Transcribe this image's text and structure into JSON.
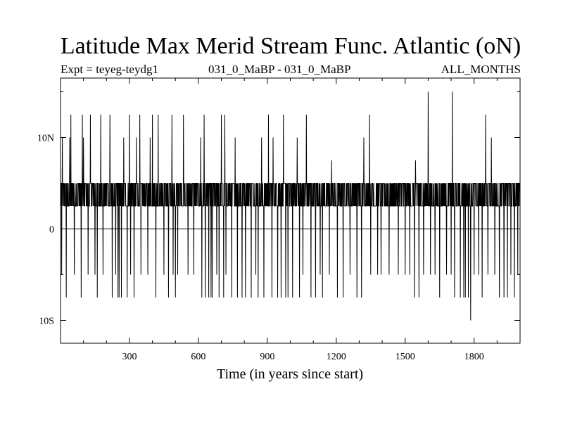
{
  "chart_data": {
    "type": "line",
    "title": "Latitude Max Merid Stream Func. Atlantic (oN)",
    "subtitle_left": "Expt = teyeg-teydg1",
    "subtitle_center": "031_0_MaBP - 031_0_MaBP",
    "subtitle_right": "ALL_MONTHS",
    "xlabel": "Time (in years since start)",
    "ylabel": "",
    "xlim": [
      0,
      2000
    ],
    "ylim": [
      -12.5,
      16.5
    ],
    "x_ticks": [
      300,
      600,
      900,
      1200,
      1500,
      1800
    ],
    "x_tick_labels": [
      "300",
      "600",
      "900",
      "1200",
      "1500",
      "1800"
    ],
    "y_ticks": [
      -10,
      0,
      10
    ],
    "y_tick_labels": [
      "10S",
      "0",
      "10N"
    ],
    "grid": false,
    "legend": "none",
    "series": [
      {
        "description": "Noisy annual series toggling mostly between about 2.5 and 5 degN, with frequent dips to -5 to -7.5 and spikes to 10-12.5",
        "baseline_low": 2.5,
        "baseline_high": 5,
        "spikes": [
          [
            8,
            10
          ],
          [
            40,
            10
          ],
          [
            45,
            12.5
          ],
          [
            95,
            12.5
          ],
          [
            100,
            10
          ],
          [
            130,
            12.5
          ],
          [
            160,
            10
          ],
          [
            175,
            12.5
          ],
          [
            215,
            12.5
          ],
          [
            225,
            12.5
          ],
          [
            255,
            12.5
          ],
          [
            275,
            10
          ],
          [
            300,
            12.5
          ],
          [
            330,
            10
          ],
          [
            345,
            12.5
          ],
          [
            390,
            10
          ],
          [
            400,
            12.5
          ],
          [
            415,
            12.5
          ],
          [
            425,
            12.5
          ],
          [
            485,
            12.5
          ],
          [
            500,
            10
          ],
          [
            535,
            12.5
          ],
          [
            555,
            10
          ],
          [
            580,
            12.5
          ],
          [
            610,
            10
          ],
          [
            625,
            12.5
          ],
          [
            660,
            10
          ],
          [
            700,
            12.5
          ],
          [
            715,
            12.5
          ],
          [
            745,
            12.5
          ],
          [
            760,
            10
          ],
          [
            790,
            12.5
          ],
          [
            860,
            12.5
          ],
          [
            875,
            10
          ],
          [
            905,
            12.5
          ],
          [
            925,
            10
          ],
          [
            970,
            12.5
          ],
          [
            1010,
            12.5
          ],
          [
            1030,
            10
          ],
          [
            1070,
            12.5
          ],
          [
            1180,
            7.5
          ],
          [
            1230,
            12.5
          ],
          [
            1320,
            10
          ],
          [
            1345,
            12.5
          ],
          [
            1545,
            7.5
          ],
          [
            1600,
            15
          ],
          [
            1705,
            15
          ],
          [
            1835,
            10
          ],
          [
            1850,
            12.5
          ],
          [
            1875,
            10
          ]
        ],
        "dips": [
          [
            5,
            -5
          ],
          [
            25,
            -7.5
          ],
          [
            60,
            -5
          ],
          [
            90,
            -7.5
          ],
          [
            120,
            -5
          ],
          [
            150,
            -5
          ],
          [
            160,
            -7.5
          ],
          [
            185,
            -5
          ],
          [
            225,
            -7.5
          ],
          [
            240,
            -5
          ],
          [
            250,
            -7.5
          ],
          [
            255,
            -7.5
          ],
          [
            265,
            -7.5
          ],
          [
            290,
            -7.5
          ],
          [
            305,
            -5
          ],
          [
            320,
            -7.5
          ],
          [
            350,
            -5
          ],
          [
            380,
            -5
          ],
          [
            415,
            -7.5
          ],
          [
            450,
            -5
          ],
          [
            470,
            -7.5
          ],
          [
            490,
            -5
          ],
          [
            500,
            -7.5
          ],
          [
            510,
            -5
          ],
          [
            555,
            -5
          ],
          [
            580,
            -5
          ],
          [
            615,
            -7.5
          ],
          [
            630,
            -7.5
          ],
          [
            645,
            -7.5
          ],
          [
            655,
            -7.5
          ],
          [
            660,
            -7.5
          ],
          [
            680,
            -5
          ],
          [
            690,
            -7.5
          ],
          [
            710,
            -7.5
          ],
          [
            720,
            -5
          ],
          [
            745,
            -7.5
          ],
          [
            770,
            -7.5
          ],
          [
            790,
            -7.5
          ],
          [
            805,
            -7.5
          ],
          [
            830,
            -7.5
          ],
          [
            850,
            -5
          ],
          [
            860,
            -7.5
          ],
          [
            885,
            -7.5
          ],
          [
            920,
            -7.5
          ],
          [
            945,
            -7.5
          ],
          [
            960,
            -7.5
          ],
          [
            980,
            -7.5
          ],
          [
            990,
            -7.5
          ],
          [
            1010,
            -7.5
          ],
          [
            1040,
            -7.5
          ],
          [
            1055,
            -5
          ],
          [
            1090,
            -7.5
          ],
          [
            1110,
            -7.5
          ],
          [
            1130,
            -5
          ],
          [
            1140,
            -7.5
          ],
          [
            1170,
            -5
          ],
          [
            1205,
            -7.5
          ],
          [
            1230,
            -7.5
          ],
          [
            1260,
            -5
          ],
          [
            1290,
            -7.5
          ],
          [
            1310,
            -7.5
          ],
          [
            1350,
            -5
          ],
          [
            1380,
            -5
          ],
          [
            1395,
            -5
          ],
          [
            1430,
            -5
          ],
          [
            1470,
            -5
          ],
          [
            1500,
            -5
          ],
          [
            1520,
            -5
          ],
          [
            1540,
            -7.5
          ],
          [
            1560,
            -7.5
          ],
          [
            1580,
            -5
          ],
          [
            1610,
            -5
          ],
          [
            1630,
            -5
          ],
          [
            1650,
            -7.5
          ],
          [
            1680,
            -5
          ],
          [
            1700,
            -5
          ],
          [
            1715,
            -7.5
          ],
          [
            1740,
            -7.5
          ],
          [
            1755,
            -7.5
          ],
          [
            1762,
            -7.5
          ],
          [
            1775,
            -7.5
          ],
          [
            1785,
            -10
          ],
          [
            1800,
            -5
          ],
          [
            1820,
            -5
          ],
          [
            1835,
            -7.5
          ],
          [
            1860,
            -5
          ],
          [
            1890,
            -5
          ],
          [
            1910,
            -7.5
          ],
          [
            1930,
            -7.5
          ],
          [
            1945,
            -7.5
          ],
          [
            1960,
            -5
          ],
          [
            1975,
            -7.5
          ],
          [
            1990,
            -5
          ]
        ]
      }
    ]
  }
}
